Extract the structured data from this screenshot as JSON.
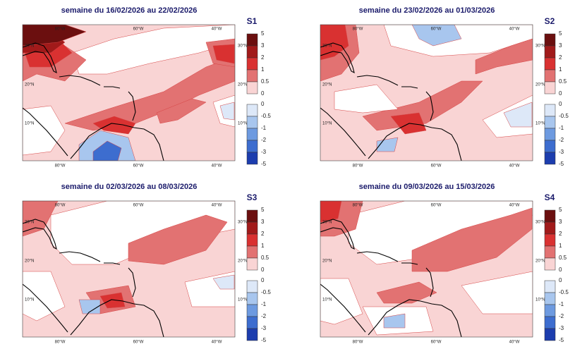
{
  "panels": [
    {
      "title": "semaine du 16/02/2026 au 22/02/2026",
      "label": "S1"
    },
    {
      "title": "semaine du 23/02/2026 au 01/03/2026",
      "label": "S2"
    },
    {
      "title": "semaine du 02/03/2026 au 08/03/2026",
      "label": "S3"
    },
    {
      "title": "semaine du 09/03/2026 au 15/03/2026",
      "label": "S4"
    }
  ],
  "axis_labels": {
    "lon": [
      "80°W",
      "60°W",
      "40°W"
    ],
    "lat": [
      "30°N",
      "20°N",
      "10°N"
    ]
  },
  "colorbar": {
    "positive": {
      "levels": [
        "5",
        "3",
        "2",
        "1",
        "0.5",
        "0"
      ],
      "colors": [
        "#6b0f0f",
        "#a11a1a",
        "#d93131",
        "#e27272",
        "#f9d4d4"
      ]
    },
    "negative": {
      "levels": [
        "0",
        "-0.5",
        "-1",
        "-2",
        "-3",
        "-5"
      ],
      "colors": [
        "#dde8f8",
        "#a8c6ee",
        "#6d9ae0",
        "#3d6dcf",
        "#1c3dae"
      ]
    }
  }
}
